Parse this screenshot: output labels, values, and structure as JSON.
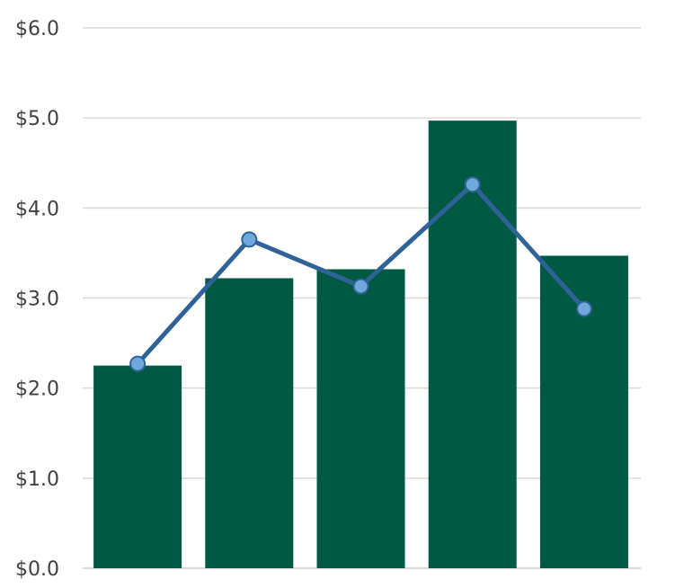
{
  "chart_data": {
    "type": "bar",
    "categories": [
      "",
      "",
      "",
      "",
      ""
    ],
    "series": [
      {
        "type": "bar",
        "values": [
          2.25,
          3.22,
          3.32,
          4.97,
          3.47
        ],
        "color": "#005a43"
      },
      {
        "type": "line",
        "values": [
          2.27,
          3.65,
          3.13,
          4.26,
          2.88
        ],
        "color": "#2f6296",
        "marker_color": "#6fa8dc"
      }
    ],
    "ylim": [
      0,
      6
    ],
    "yticks": [
      {
        "value": 0,
        "label": "$0.0"
      },
      {
        "value": 1,
        "label": "$1.0"
      },
      {
        "value": 2,
        "label": "$2.0"
      },
      {
        "value": 3,
        "label": "$3.0"
      },
      {
        "value": 4,
        "label": "$4.0"
      },
      {
        "value": 5,
        "label": "$5.0"
      },
      {
        "value": 6,
        "label": "$6.0"
      }
    ],
    "grid": true,
    "gridline_color": "#d9d9d9",
    "title": "",
    "xlabel": "",
    "ylabel": ""
  }
}
